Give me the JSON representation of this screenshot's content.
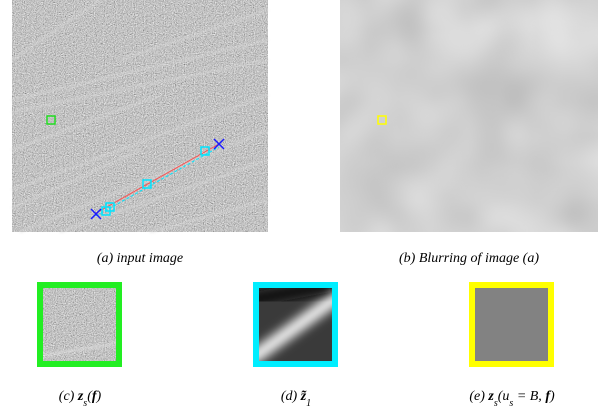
{
  "panels": [
    {
      "caption": [
        {
          "text": "(a) input image"
        }
      ]
    },
    {
      "caption": [
        {
          "text": "(b) Blurring of image (a)"
        }
      ]
    },
    {
      "caption": [
        {
          "text": "(c) "
        },
        {
          "text": "z",
          "style": "bold-italic"
        },
        {
          "text": "s",
          "style": "sub"
        },
        {
          "text": "("
        },
        {
          "text": "f",
          "style": "bold-italic"
        },
        {
          "text": ")"
        }
      ]
    },
    {
      "caption": [
        {
          "text": "(d) "
        },
        {
          "text": "z̃",
          "style": "bold-italic"
        },
        {
          "text": "1",
          "style": "sub"
        }
      ]
    },
    {
      "caption": [
        {
          "text": "(e) "
        },
        {
          "text": "z",
          "style": "bold-italic"
        },
        {
          "text": "s",
          "style": "sub"
        },
        {
          "text": "(u"
        },
        {
          "text": "s",
          "style": "sub"
        },
        {
          "text": " = B, "
        },
        {
          "text": "f",
          "style": "bold-italic"
        },
        {
          "text": ")"
        }
      ]
    }
  ]
}
